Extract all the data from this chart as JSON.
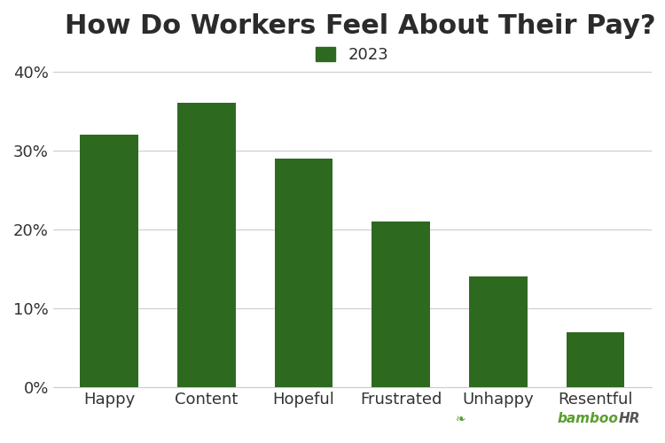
{
  "title": "How Do Workers Feel About Their Pay?",
  "legend_label": "2023",
  "categories": [
    "Happy",
    "Content",
    "Hopeful",
    "Frustrated",
    "Unhappy",
    "Resentful"
  ],
  "values": [
    32,
    36,
    29,
    21,
    14,
    7
  ],
  "bar_color": "#2d6a1f",
  "background_color": "#ffffff",
  "title_color": "#2b2b2b",
  "axis_label_color": "#333333",
  "tick_label_color": "#333333",
  "grid_color": "#cccccc",
  "ylim": [
    0,
    42
  ],
  "yticks": [
    0,
    10,
    20,
    30,
    40
  ],
  "ytick_labels": [
    "0%",
    "10%",
    "20%",
    "30%",
    "40%"
  ],
  "title_fontsize": 22,
  "tick_fontsize": 13,
  "legend_fontsize": 13,
  "bamboohr_text": "bambooHR",
  "bamboohr_color_bamboo": "#5a9e2f",
  "bamboohr_color_hr": "#555555"
}
